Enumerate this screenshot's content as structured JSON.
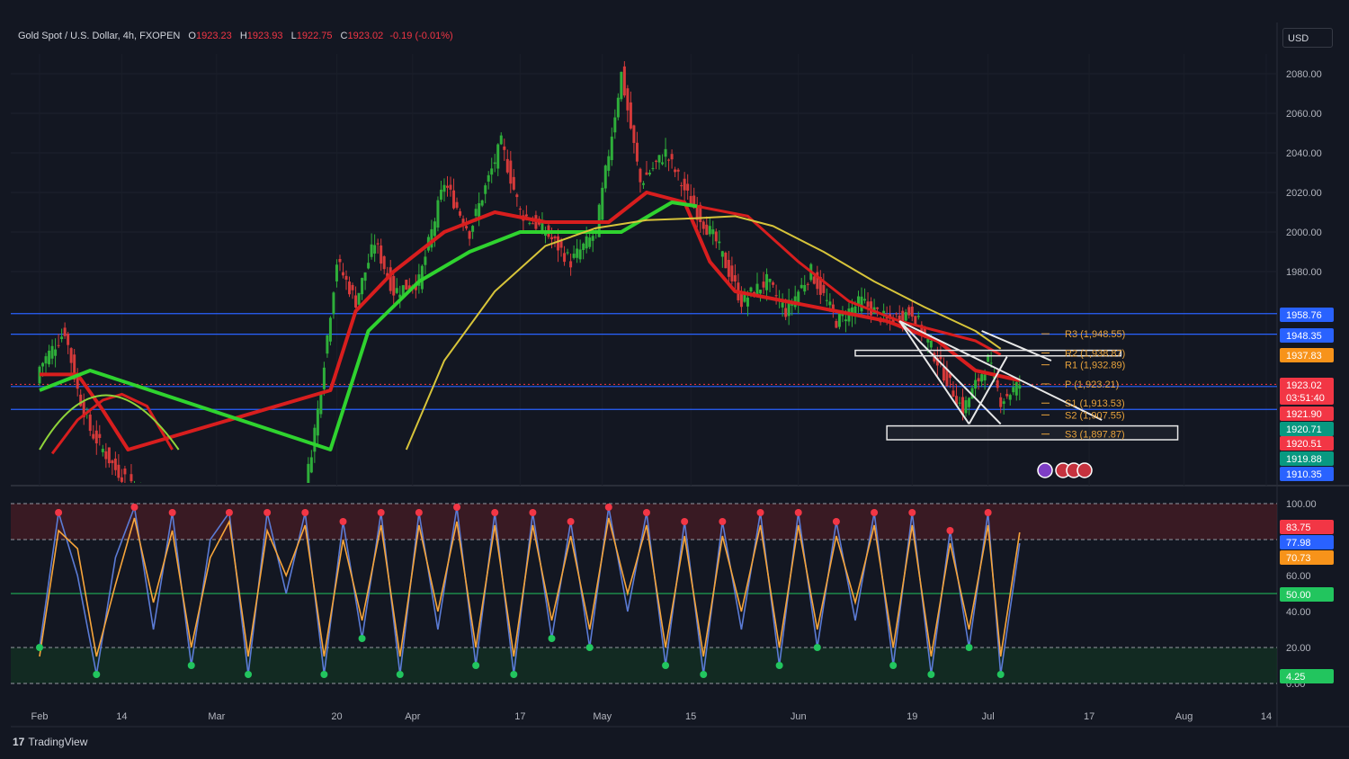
{
  "header": {
    "symbol": "Gold Spot / U.S. Dollar, 4h, FXOPEN",
    "open_label": "O",
    "open": "1923.23",
    "high_label": "H",
    "high": "1923.93",
    "low_label": "L",
    "low": "1922.75",
    "close_label": "C",
    "close": "1923.02",
    "change": "-0.19 (-0.01%)"
  },
  "currency": "USD",
  "brand": {
    "logo": "17",
    "name": "TradingView"
  },
  "chart_data": [
    {
      "type": "line",
      "title": "Gold Spot / U.S. Dollar, 4h, FXOPEN",
      "ylim": [
        1890,
        2096
      ],
      "y_ticks": [
        1980,
        2000,
        2020,
        2040,
        2060,
        2080
      ],
      "y_tick_labels": [
        "1980.00",
        "2000.00",
        "2020.00",
        "2040.00",
        "2060.00",
        "2080.00"
      ],
      "x_ticks": [
        {
          "label": "Feb",
          "t": 0
        },
        {
          "label": "14",
          "t": 13
        },
        {
          "label": "Mar",
          "t": 28
        },
        {
          "label": "20",
          "t": 47
        },
        {
          "label": "Apr",
          "t": 59
        },
        {
          "label": "17",
          "t": 76
        },
        {
          "label": "May",
          "t": 89
        },
        {
          "label": "15",
          "t": 103
        },
        {
          "label": "Jun",
          "t": 120
        },
        {
          "label": "19",
          "t": 138
        },
        {
          "label": "Jul",
          "t": 150
        },
        {
          "label": "17",
          "t": 166
        },
        {
          "label": "Aug",
          "t": 181
        },
        {
          "label": "14",
          "t": 194
        }
      ],
      "price_path": [
        {
          "t": 0,
          "y": 1932
        },
        {
          "t": 4,
          "y": 1950
        },
        {
          "t": 6,
          "y": 1920
        },
        {
          "t": 8,
          "y": 1900
        },
        {
          "t": 12,
          "y": 1880
        },
        {
          "t": 20,
          "y": 1860
        },
        {
          "t": 28,
          "y": 1820
        },
        {
          "t": 40,
          "y": 1830
        },
        {
          "t": 44,
          "y": 1910
        },
        {
          "t": 47,
          "y": 1985
        },
        {
          "t": 50,
          "y": 1965
        },
        {
          "t": 53,
          "y": 1995
        },
        {
          "t": 56,
          "y": 1970
        },
        {
          "t": 60,
          "y": 1975
        },
        {
          "t": 64,
          "y": 2025
        },
        {
          "t": 68,
          "y": 2000
        },
        {
          "t": 73,
          "y": 2045
        },
        {
          "t": 76,
          "y": 2010
        },
        {
          "t": 80,
          "y": 2000
        },
        {
          "t": 84,
          "y": 1985
        },
        {
          "t": 88,
          "y": 2000
        },
        {
          "t": 92,
          "y": 2080
        },
        {
          "t": 95,
          "y": 2025
        },
        {
          "t": 99,
          "y": 2040
        },
        {
          "t": 103,
          "y": 2015
        },
        {
          "t": 107,
          "y": 1995
        },
        {
          "t": 111,
          "y": 1965
        },
        {
          "t": 115,
          "y": 1975
        },
        {
          "t": 118,
          "y": 1960
        },
        {
          "t": 122,
          "y": 1980
        },
        {
          "t": 126,
          "y": 1955
        },
        {
          "t": 130,
          "y": 1965
        },
        {
          "t": 134,
          "y": 1955
        },
        {
          "t": 138,
          "y": 1960
        },
        {
          "t": 142,
          "y": 1935
        },
        {
          "t": 146,
          "y": 1910
        },
        {
          "t": 150,
          "y": 1935
        },
        {
          "t": 152,
          "y": 1915
        },
        {
          "t": 155,
          "y": 1923
        }
      ],
      "series": [
        {
          "values": [
            {
              "t": 0,
              "y": 1928
            },
            {
              "t": 6,
              "y": 1928
            },
            {
              "t": 10,
              "y": 1910
            },
            {
              "t": 14,
              "y": 1890
            },
            {
              "t": 46,
              "y": 1920
            },
            {
              "t": 50,
              "y": 1960
            },
            {
              "t": 56,
              "y": 1980
            },
            {
              "t": 64,
              "y": 2000
            },
            {
              "t": 72,
              "y": 2010
            },
            {
              "t": 80,
              "y": 2005
            },
            {
              "t": 90,
              "y": 2005
            },
            {
              "t": 96,
              "y": 2020
            },
            {
              "t": 102,
              "y": 2015
            },
            {
              "t": 106,
              "y": 1985
            },
            {
              "t": 110,
              "y": 1970
            },
            {
              "t": 118,
              "y": 1965
            },
            {
              "t": 126,
              "y": 1960
            },
            {
              "t": 134,
              "y": 1955
            },
            {
              "t": 142,
              "y": 1945
            },
            {
              "t": 148,
              "y": 1930
            },
            {
              "t": 155,
              "y": 1925
            }
          ]
        },
        {
          "values": [
            {
              "t": 0,
              "y": 1920
            },
            {
              "t": 4,
              "y": 1925
            },
            {
              "t": 8,
              "y": 1930
            },
            {
              "t": 46,
              "y": 1890
            },
            {
              "t": 52,
              "y": 1950
            },
            {
              "t": 60,
              "y": 1975
            },
            {
              "t": 68,
              "y": 1990
            },
            {
              "t": 76,
              "y": 2000
            },
            {
              "t": 84,
              "y": 2000
            },
            {
              "t": 92,
              "y": 2000
            },
            {
              "t": 100,
              "y": 2015
            },
            {
              "t": 104,
              "y": 2013
            }
          ]
        },
        {
          "values": [
            {
              "t": 104,
              "y": 2013
            },
            {
              "t": 112,
              "y": 2008
            },
            {
              "t": 120,
              "y": 1985
            },
            {
              "t": 128,
              "y": 1965
            },
            {
              "t": 136,
              "y": 1955
            },
            {
              "t": 142,
              "y": 1950
            },
            {
              "t": 148,
              "y": 1945
            },
            {
              "t": 152,
              "y": 1938
            }
          ]
        },
        {
          "values": [
            {
              "t": 2,
              "y": 1888
            },
            {
              "t": 6,
              "y": 1905
            },
            {
              "t": 10,
              "y": 1915
            },
            {
              "t": 13,
              "y": 1918
            },
            {
              "t": 17,
              "y": 1912
            },
            {
              "t": 21,
              "y": 1890
            }
          ]
        },
        {
          "values": [
            {
              "t": 58,
              "y": 1890
            },
            {
              "t": 64,
              "y": 1935
            },
            {
              "t": 72,
              "y": 1970
            },
            {
              "t": 80,
              "y": 1993
            },
            {
              "t": 88,
              "y": 2002
            },
            {
              "t": 96,
              "y": 2006
            },
            {
              "t": 104,
              "y": 2007
            },
            {
              "t": 110,
              "y": 2008
            },
            {
              "t": 116,
              "y": 2003
            },
            {
              "t": 124,
              "y": 1990
            },
            {
              "t": 132,
              "y": 1975
            },
            {
              "t": 140,
              "y": 1962
            },
            {
              "t": 148,
              "y": 1950
            },
            {
              "t": 152,
              "y": 1941
            }
          ]
        }
      ],
      "horizontal_levels": [
        1958.76,
        1948.35,
        1921.9,
        1910.35
      ],
      "pivots": [
        {
          "label": "R3 (1,948.55)",
          "value": 1948.55
        },
        {
          "label": "R2 (1,938.87)",
          "value": 1938.87
        },
        {
          "label": "R1 (1,932.89)",
          "value": 1932.89
        },
        {
          "label": "P (1,923.21)",
          "value": 1923.21
        },
        {
          "label": "S1 (1,913.53)",
          "value": 1913.53
        },
        {
          "label": "S2 (1,907.55)",
          "value": 1907.55
        },
        {
          "label": "S3 (1,897.87)",
          "value": 1897.87
        }
      ],
      "price_tags": [
        {
          "text": "1958.76",
          "value": 1958.76,
          "color": "#2962ff"
        },
        {
          "text": "1948.35",
          "value": 1948.35,
          "color": "#2962ff"
        },
        {
          "text": "1937.83",
          "value": 1937.83,
          "color": "#f7931a"
        },
        {
          "text": "1923.02",
          "value": 1923.02,
          "color": "#f23645",
          "countdown": "03:51:40"
        },
        {
          "text": "1921.90",
          "value": 1921.9,
          "color": "#f23645"
        },
        {
          "text": "1920.71",
          "value": 1920.71,
          "color": "#089981"
        },
        {
          "text": "1920.51",
          "value": 1920.51,
          "color": "#f23645"
        },
        {
          "text": "1919.88",
          "value": 1919.88,
          "color": "#089981"
        },
        {
          "text": "1910.35",
          "value": 1910.35,
          "color": "#2962ff"
        }
      ]
    },
    {
      "type": "line",
      "title": "",
      "ylim": [
        0,
        100
      ],
      "y_ticks": [
        0,
        20,
        40,
        60,
        80,
        100
      ],
      "y_tick_labels": [
        "0.00",
        "20.00",
        "40.00",
        "60.00",
        "",
        "100.00"
      ],
      "levels": [
        80,
        50,
        20
      ],
      "series": [
        {
          "name": "",
          "color": "#5b7bd5",
          "values": [
            {
              "t": 0,
              "y": 20
            },
            {
              "t": 3,
              "y": 95
            },
            {
              "t": 6,
              "y": 60
            },
            {
              "t": 9,
              "y": 5
            },
            {
              "t": 12,
              "y": 70
            },
            {
              "t": 15,
              "y": 98
            },
            {
              "t": 18,
              "y": 30
            },
            {
              "t": 21,
              "y": 95
            },
            {
              "t": 24,
              "y": 10
            },
            {
              "t": 27,
              "y": 80
            },
            {
              "t": 30,
              "y": 95
            },
            {
              "t": 33,
              "y": 5
            },
            {
              "t": 36,
              "y": 95
            },
            {
              "t": 39,
              "y": 50
            },
            {
              "t": 42,
              "y": 95
            },
            {
              "t": 45,
              "y": 5
            },
            {
              "t": 48,
              "y": 90
            },
            {
              "t": 51,
              "y": 25
            },
            {
              "t": 54,
              "y": 95
            },
            {
              "t": 57,
              "y": 5
            },
            {
              "t": 60,
              "y": 95
            },
            {
              "t": 63,
              "y": 30
            },
            {
              "t": 66,
              "y": 98
            },
            {
              "t": 69,
              "y": 10
            },
            {
              "t": 72,
              "y": 95
            },
            {
              "t": 75,
              "y": 5
            },
            {
              "t": 78,
              "y": 95
            },
            {
              "t": 81,
              "y": 25
            },
            {
              "t": 84,
              "y": 90
            },
            {
              "t": 87,
              "y": 20
            },
            {
              "t": 90,
              "y": 98
            },
            {
              "t": 93,
              "y": 40
            },
            {
              "t": 96,
              "y": 95
            },
            {
              "t": 99,
              "y": 10
            },
            {
              "t": 102,
              "y": 90
            },
            {
              "t": 105,
              "y": 5
            },
            {
              "t": 108,
              "y": 90
            },
            {
              "t": 111,
              "y": 30
            },
            {
              "t": 114,
              "y": 95
            },
            {
              "t": 117,
              "y": 10
            },
            {
              "t": 120,
              "y": 95
            },
            {
              "t": 123,
              "y": 20
            },
            {
              "t": 126,
              "y": 90
            },
            {
              "t": 129,
              "y": 35
            },
            {
              "t": 132,
              "y": 95
            },
            {
              "t": 135,
              "y": 10
            },
            {
              "t": 138,
              "y": 95
            },
            {
              "t": 141,
              "y": 5
            },
            {
              "t": 144,
              "y": 85
            },
            {
              "t": 147,
              "y": 20
            },
            {
              "t": 150,
              "y": 95
            },
            {
              "t": 152,
              "y": 5
            },
            {
              "t": 155,
              "y": 78
            }
          ]
        },
        {
          "name": "",
          "color": "#f7a53a",
          "values": [
            {
              "t": 0,
              "y": 15
            },
            {
              "t": 3,
              "y": 85
            },
            {
              "t": 6,
              "y": 75
            },
            {
              "t": 9,
              "y": 15
            },
            {
              "t": 12,
              "y": 55
            },
            {
              "t": 15,
              "y": 92
            },
            {
              "t": 18,
              "y": 45
            },
            {
              "t": 21,
              "y": 85
            },
            {
              "t": 24,
              "y": 20
            },
            {
              "t": 27,
              "y": 70
            },
            {
              "t": 30,
              "y": 90
            },
            {
              "t": 33,
              "y": 15
            },
            {
              "t": 36,
              "y": 85
            },
            {
              "t": 39,
              "y": 60
            },
            {
              "t": 42,
              "y": 88
            },
            {
              "t": 45,
              "y": 15
            },
            {
              "t": 48,
              "y": 80
            },
            {
              "t": 51,
              "y": 35
            },
            {
              "t": 54,
              "y": 88
            },
            {
              "t": 57,
              "y": 15
            },
            {
              "t": 60,
              "y": 88
            },
            {
              "t": 63,
              "y": 40
            },
            {
              "t": 66,
              "y": 90
            },
            {
              "t": 69,
              "y": 20
            },
            {
              "t": 72,
              "y": 88
            },
            {
              "t": 75,
              "y": 15
            },
            {
              "t": 78,
              "y": 88
            },
            {
              "t": 81,
              "y": 35
            },
            {
              "t": 84,
              "y": 82
            },
            {
              "t": 87,
              "y": 30
            },
            {
              "t": 90,
              "y": 92
            },
            {
              "t": 93,
              "y": 50
            },
            {
              "t": 96,
              "y": 88
            },
            {
              "t": 99,
              "y": 20
            },
            {
              "t": 102,
              "y": 82
            },
            {
              "t": 105,
              "y": 15
            },
            {
              "t": 108,
              "y": 82
            },
            {
              "t": 111,
              "y": 40
            },
            {
              "t": 114,
              "y": 88
            },
            {
              "t": 117,
              "y": 20
            },
            {
              "t": 120,
              "y": 88
            },
            {
              "t": 123,
              "y": 30
            },
            {
              "t": 126,
              "y": 82
            },
            {
              "t": 129,
              "y": 45
            },
            {
              "t": 132,
              "y": 88
            },
            {
              "t": 135,
              "y": 20
            },
            {
              "t": 138,
              "y": 88
            },
            {
              "t": 141,
              "y": 15
            },
            {
              "t": 144,
              "y": 78
            },
            {
              "t": 147,
              "y": 30
            },
            {
              "t": 150,
              "y": 88
            },
            {
              "t": 152,
              "y": 15
            },
            {
              "t": 155,
              "y": 84
            }
          ]
        }
      ],
      "price_tags": [
        {
          "text": "83.75",
          "value": 83.75,
          "color": "#f23645"
        },
        {
          "text": "77.98",
          "value": 77.98,
          "color": "#2962ff"
        },
        {
          "text": "70.73",
          "value": 70.73,
          "color": "#f7931a"
        },
        {
          "text": "50.00",
          "value": 50,
          "color": "#22c55e"
        },
        {
          "text": "4.25",
          "value": 4.25,
          "color": "#22c55e"
        }
      ]
    }
  ]
}
